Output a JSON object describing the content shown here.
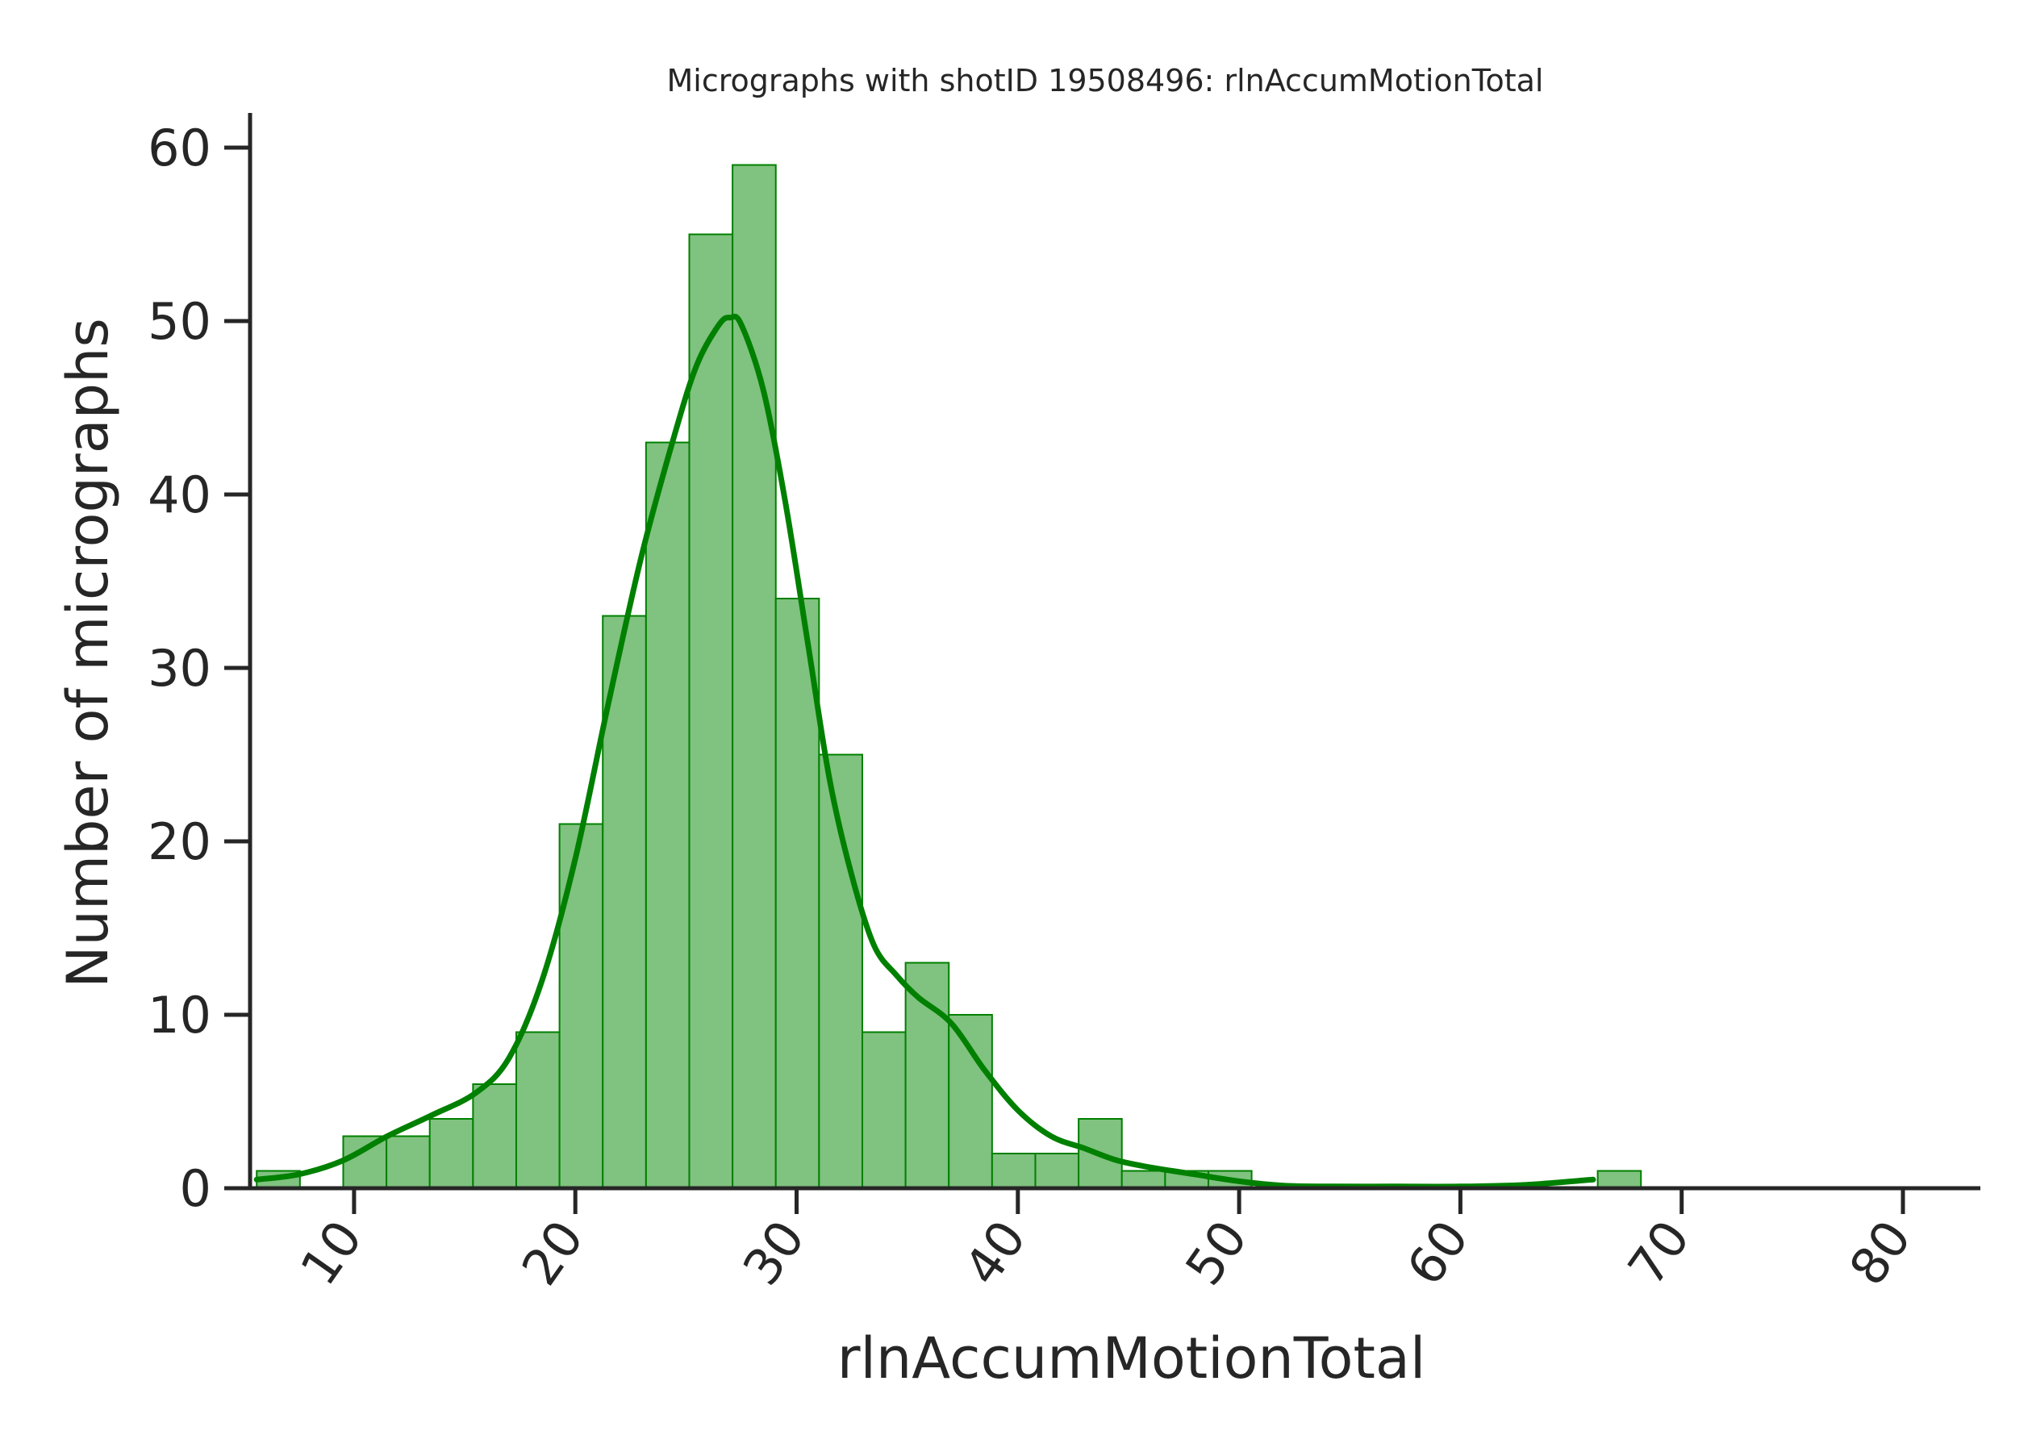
{
  "chart_data": {
    "type": "bar",
    "title": "Micrographs with shotID 19508496: rlnAccumMotionTotal",
    "xlabel": "rlnAccumMotionTotal",
    "ylabel": "Number of micrographs",
    "xlim": [
      5.3,
      83.5
    ],
    "ylim": [
      0,
      62
    ],
    "xticks": [
      10,
      20,
      30,
      40,
      50,
      60,
      70,
      80
    ],
    "yticks": [
      0,
      10,
      20,
      30,
      40,
      50,
      60
    ],
    "tick_rotation_x": -55,
    "grid": false,
    "colors": {
      "bar_fill": "#80c280",
      "bar_edge": "#008000",
      "kde": "#008000",
      "axis": "#262626"
    },
    "bins": {
      "start": 5.6,
      "width": 1.955,
      "counts": [
        1,
        0,
        3,
        3,
        4,
        6,
        9,
        21,
        33,
        43,
        55,
        59,
        34,
        25,
        9,
        13,
        10,
        2,
        2,
        4,
        1,
        1,
        1,
        0,
        0,
        0,
        0,
        0,
        0,
        0,
        0,
        1
      ]
    },
    "kde": {
      "x": [
        5.6,
        7.5,
        9.5,
        11.5,
        13.5,
        15.5,
        17.0,
        18.5,
        20.0,
        21.5,
        23.0,
        24.5,
        25.5,
        26.5,
        27.0,
        27.5,
        28.5,
        29.5,
        30.5,
        31.5,
        32.5,
        33.5,
        34.5,
        35.5,
        37.0,
        38.5,
        40.0,
        41.5,
        43.0,
        44.5,
        46.0,
        48.0,
        50.0,
        52.0,
        54.0,
        57.0,
        60.0,
        63.0,
        66.0
      ],
      "y": [
        0.5,
        0.8,
        1.6,
        3.0,
        4.2,
        5.5,
        7.5,
        12.0,
        19.0,
        28.0,
        36.5,
        43.5,
        47.5,
        49.8,
        50.2,
        49.8,
        46.0,
        39.5,
        31.5,
        23.5,
        18.0,
        14.0,
        12.3,
        11.0,
        9.5,
        6.8,
        4.5,
        3.0,
        2.3,
        1.6,
        1.2,
        0.8,
        0.4,
        0.15,
        0.1,
        0.1,
        0.1,
        0.2,
        0.5
      ]
    }
  }
}
